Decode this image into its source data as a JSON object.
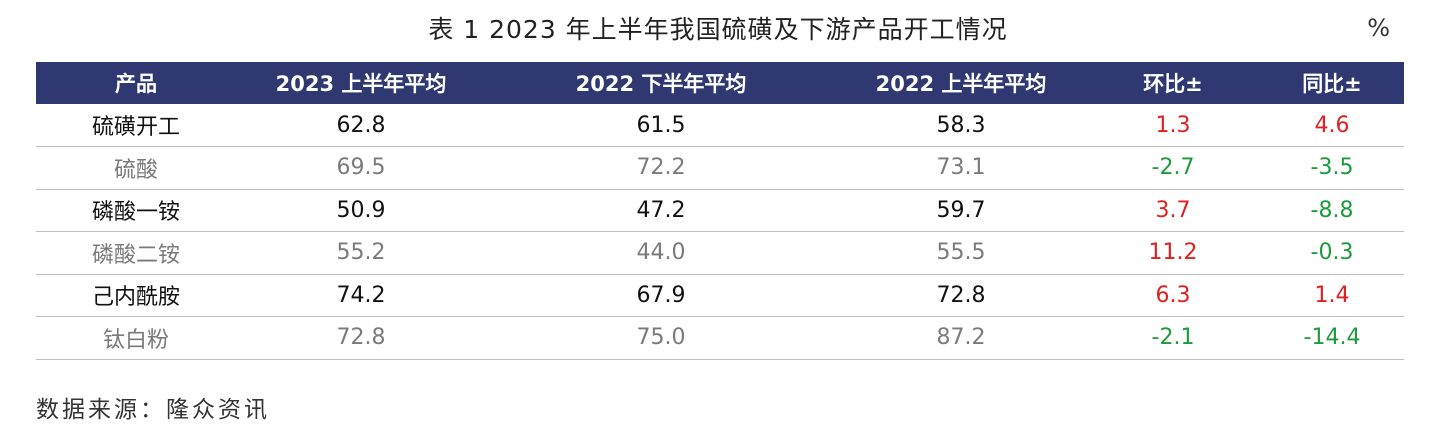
{
  "title": "表 1 2023 年上半年我国硫磺及下游产品开工情况",
  "unit": "%",
  "table": {
    "headers": [
      "产品",
      "2023 上半年平均",
      "2022 下半年平均",
      "2022 上半年平均",
      "环比±",
      "同比±"
    ],
    "rows": [
      {
        "cells": [
          "硫磺开工",
          "62.8",
          "61.5",
          "58.3",
          "1.3",
          "4.6"
        ],
        "style": "dark",
        "mom_color": "red",
        "yoy_color": "red"
      },
      {
        "cells": [
          "硫酸",
          "69.5",
          "72.2",
          "73.1",
          "-2.7",
          "-3.5"
        ],
        "style": "light",
        "mom_color": "green",
        "yoy_color": "green"
      },
      {
        "cells": [
          "磷酸一铵",
          "50.9",
          "47.2",
          "59.7",
          "3.7",
          "-8.8"
        ],
        "style": "dark",
        "mom_color": "red",
        "yoy_color": "green"
      },
      {
        "cells": [
          "磷酸二铵",
          "55.2",
          "44.0",
          "55.5",
          "11.2",
          "-0.3"
        ],
        "style": "light",
        "mom_color": "red",
        "yoy_color": "green"
      },
      {
        "cells": [
          "己内酰胺",
          "74.2",
          "67.9",
          "72.8",
          "6.3",
          "1.4"
        ],
        "style": "dark",
        "mom_color": "red",
        "yoy_color": "red"
      },
      {
        "cells": [
          "钛白粉",
          "72.8",
          "75.0",
          "87.2",
          "-2.1",
          "-14.4"
        ],
        "style": "light",
        "mom_color": "green",
        "yoy_color": "green"
      }
    ]
  },
  "source": "数据来源：隆众资讯",
  "colors": {
    "header_bg": "#2f3871",
    "positive": "#e02020",
    "negative": "#1e9a3c"
  }
}
